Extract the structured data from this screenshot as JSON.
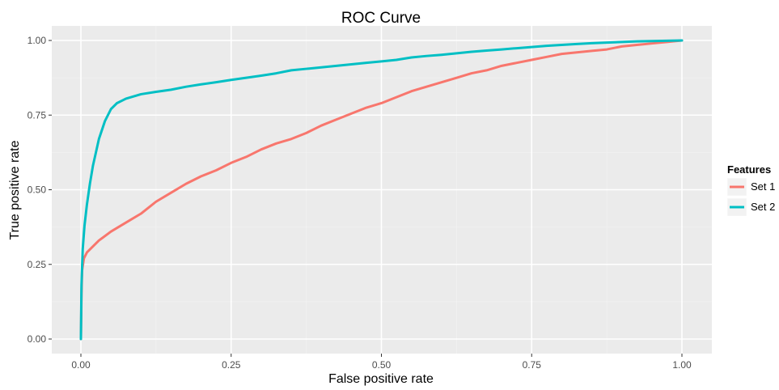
{
  "chart_data": {
    "type": "line",
    "title": "ROC Curve",
    "xlabel": "False positive rate",
    "ylabel": "True positive rate",
    "xlim": [
      0,
      1
    ],
    "ylim": [
      0,
      1
    ],
    "x_ticks": [
      0,
      0.25,
      0.5,
      0.75,
      1.0
    ],
    "y_ticks": [
      0,
      0.25,
      0.5,
      0.75,
      1.0
    ],
    "x_tick_labels": [
      "0.00",
      "0.25",
      "0.50",
      "0.75",
      "1.00"
    ],
    "y_tick_labels": [
      "0.00",
      "0.25",
      "0.50",
      "0.75",
      "1.00"
    ],
    "grid": true,
    "legend": {
      "title": "Features",
      "position": "right"
    },
    "series": [
      {
        "name": "Set 1",
        "color": "#f8766d",
        "points": [
          [
            0.0,
            0.0
          ],
          [
            0.001,
            0.15
          ],
          [
            0.002,
            0.23
          ],
          [
            0.005,
            0.27
          ],
          [
            0.01,
            0.29
          ],
          [
            0.02,
            0.31
          ],
          [
            0.03,
            0.33
          ],
          [
            0.05,
            0.36
          ],
          [
            0.075,
            0.39
          ],
          [
            0.1,
            0.42
          ],
          [
            0.125,
            0.46
          ],
          [
            0.15,
            0.49
          ],
          [
            0.175,
            0.52
          ],
          [
            0.2,
            0.545
          ],
          [
            0.225,
            0.565
          ],
          [
            0.25,
            0.59
          ],
          [
            0.275,
            0.61
          ],
          [
            0.3,
            0.635
          ],
          [
            0.325,
            0.655
          ],
          [
            0.35,
            0.67
          ],
          [
            0.375,
            0.69
          ],
          [
            0.4,
            0.715
          ],
          [
            0.425,
            0.735
          ],
          [
            0.45,
            0.755
          ],
          [
            0.475,
            0.775
          ],
          [
            0.5,
            0.79
          ],
          [
            0.525,
            0.81
          ],
          [
            0.55,
            0.83
          ],
          [
            0.575,
            0.845
          ],
          [
            0.6,
            0.86
          ],
          [
            0.625,
            0.875
          ],
          [
            0.65,
            0.89
          ],
          [
            0.675,
            0.9
          ],
          [
            0.7,
            0.915
          ],
          [
            0.725,
            0.925
          ],
          [
            0.75,
            0.935
          ],
          [
            0.775,
            0.945
          ],
          [
            0.8,
            0.955
          ],
          [
            0.825,
            0.96
          ],
          [
            0.85,
            0.965
          ],
          [
            0.875,
            0.97
          ],
          [
            0.9,
            0.98
          ],
          [
            0.925,
            0.985
          ],
          [
            0.95,
            0.99
          ],
          [
            0.975,
            0.995
          ],
          [
            1.0,
            1.0
          ]
        ]
      },
      {
        "name": "Set 2",
        "color": "#00bfc4",
        "points": [
          [
            0.0,
            0.0
          ],
          [
            0.001,
            0.18
          ],
          [
            0.003,
            0.3
          ],
          [
            0.006,
            0.38
          ],
          [
            0.01,
            0.45
          ],
          [
            0.015,
            0.52
          ],
          [
            0.02,
            0.58
          ],
          [
            0.03,
            0.67
          ],
          [
            0.04,
            0.73
          ],
          [
            0.05,
            0.77
          ],
          [
            0.06,
            0.79
          ],
          [
            0.075,
            0.805
          ],
          [
            0.1,
            0.82
          ],
          [
            0.125,
            0.828
          ],
          [
            0.15,
            0.835
          ],
          [
            0.175,
            0.845
          ],
          [
            0.2,
            0.853
          ],
          [
            0.225,
            0.86
          ],
          [
            0.25,
            0.868
          ],
          [
            0.275,
            0.875
          ],
          [
            0.3,
            0.882
          ],
          [
            0.325,
            0.89
          ],
          [
            0.35,
            0.9
          ],
          [
            0.375,
            0.905
          ],
          [
            0.4,
            0.91
          ],
          [
            0.425,
            0.915
          ],
          [
            0.45,
            0.92
          ],
          [
            0.475,
            0.925
          ],
          [
            0.5,
            0.93
          ],
          [
            0.525,
            0.935
          ],
          [
            0.55,
            0.943
          ],
          [
            0.575,
            0.948
          ],
          [
            0.6,
            0.952
          ],
          [
            0.625,
            0.957
          ],
          [
            0.65,
            0.962
          ],
          [
            0.675,
            0.966
          ],
          [
            0.7,
            0.97
          ],
          [
            0.725,
            0.974
          ],
          [
            0.75,
            0.978
          ],
          [
            0.775,
            0.982
          ],
          [
            0.8,
            0.985
          ],
          [
            0.825,
            0.988
          ],
          [
            0.85,
            0.991
          ],
          [
            0.875,
            0.993
          ],
          [
            0.9,
            0.995
          ],
          [
            0.925,
            0.997
          ],
          [
            0.95,
            0.998
          ],
          [
            0.975,
            0.999
          ],
          [
            1.0,
            1.0
          ]
        ]
      }
    ]
  },
  "colors": {
    "panel_background": "#ebebeb",
    "grid_major": "#ffffff",
    "grid_minor": "#f2f2f2",
    "tick_text": "#4d4d4d"
  }
}
